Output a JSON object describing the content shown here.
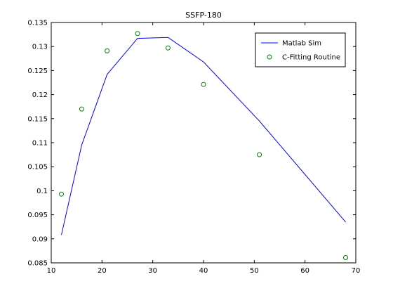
{
  "chart_data": {
    "type": "line",
    "title": "SSFP-180",
    "xlabel": "",
    "ylabel": "",
    "xlim": [
      10,
      70
    ],
    "ylim": [
      0.085,
      0.135
    ],
    "xticks": [
      10,
      20,
      30,
      40,
      50,
      60,
      70
    ],
    "yticks": [
      0.085,
      0.09,
      0.095,
      0.1,
      0.105,
      0.11,
      0.115,
      0.12,
      0.125,
      0.13,
      0.135
    ],
    "grid": false,
    "legend_position": "top-right",
    "series": [
      {
        "name": "Matlab Sim",
        "style": "line",
        "color": "#0000ff",
        "x": [
          12,
          16,
          21,
          27,
          33,
          40,
          51,
          68
        ],
        "y": [
          0.0908,
          0.1095,
          0.1242,
          0.1317,
          0.1319,
          0.1268,
          0.1145,
          0.0935
        ]
      },
      {
        "name": "C-Fitting Routine",
        "style": "marker",
        "color": "#008000",
        "x": [
          12,
          16,
          21,
          27,
          33,
          40,
          51,
          68
        ],
        "y": [
          0.0993,
          0.117,
          0.1291,
          0.1327,
          0.1297,
          0.1221,
          0.1075,
          0.0861
        ]
      }
    ]
  }
}
